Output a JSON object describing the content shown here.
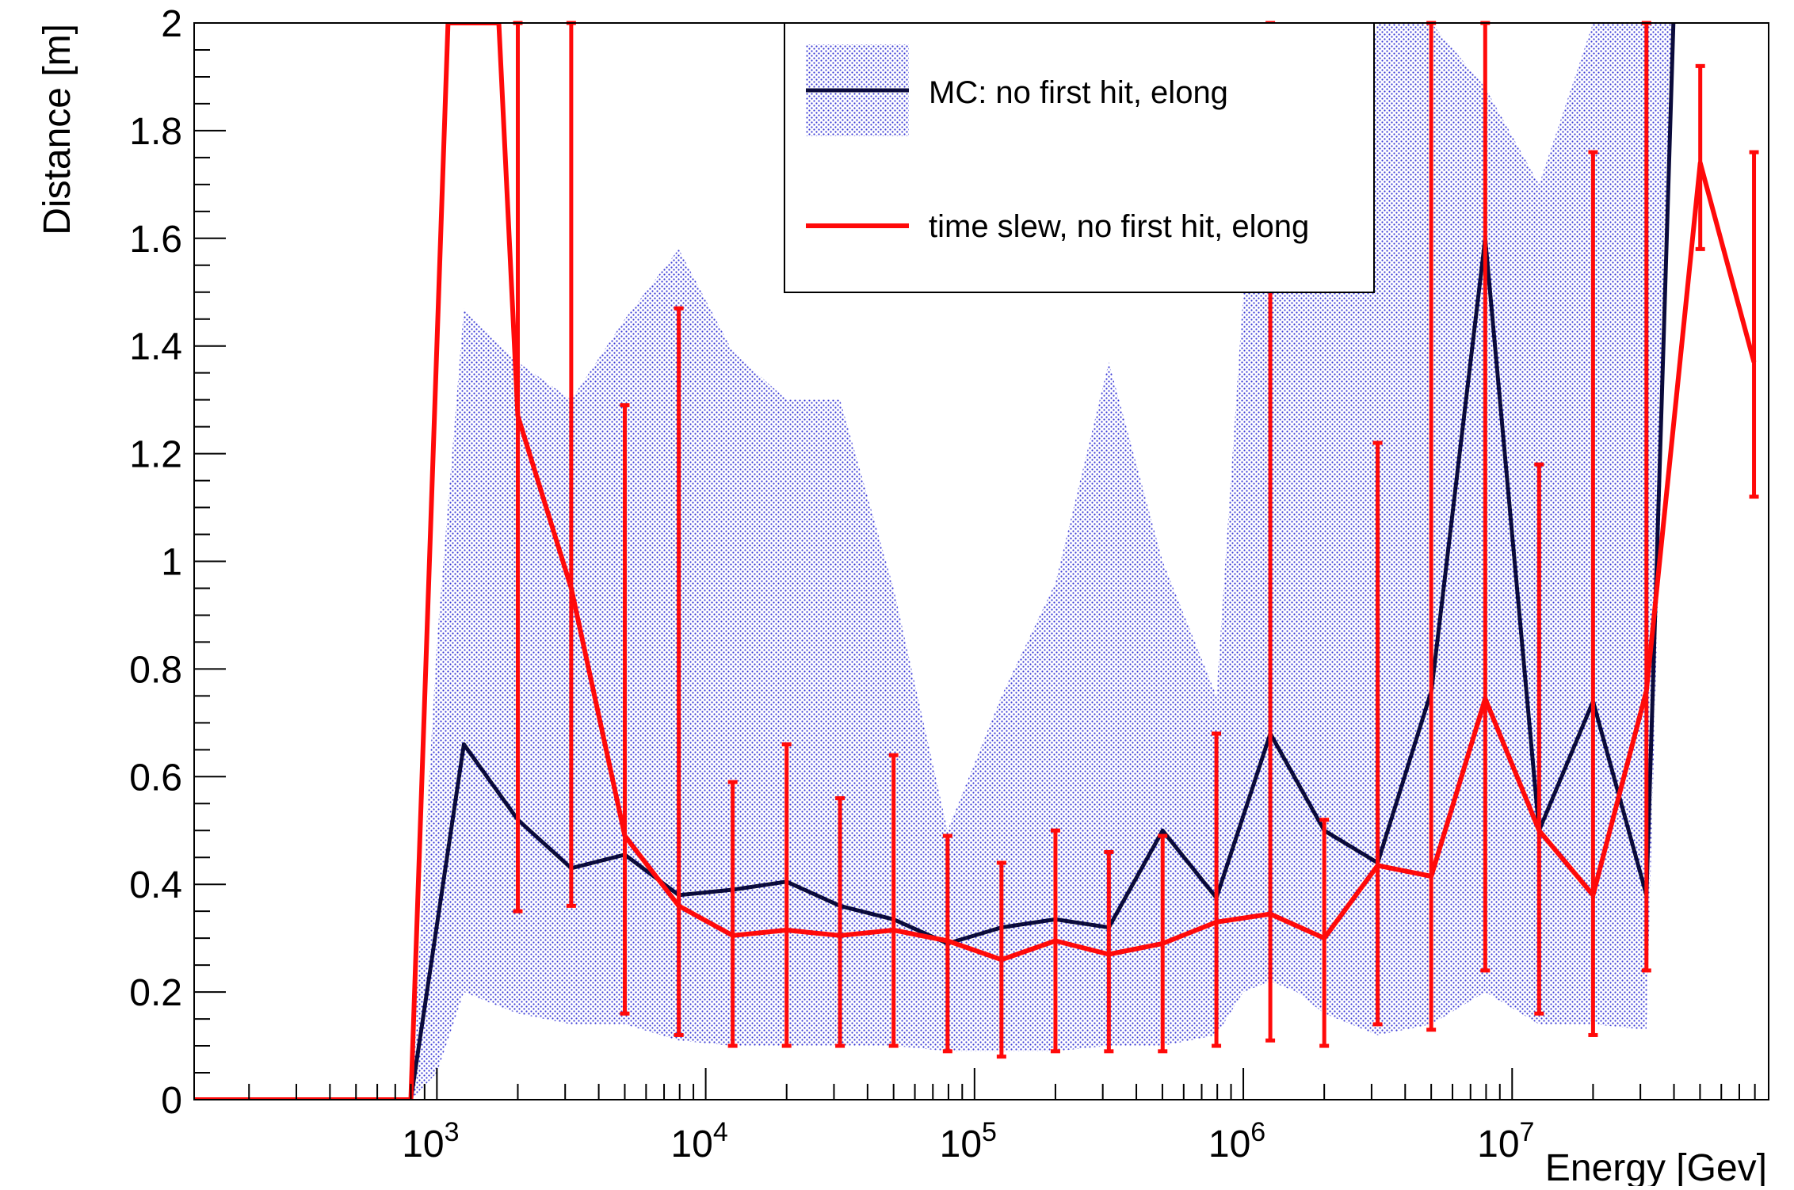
{
  "chart_data": {
    "type": "line",
    "xlabel": "Energy [Gev]",
    "ylabel": "Distance [m]",
    "xscale": "log",
    "xlim": [
      125,
      90000000
    ],
    "ylim": [
      0,
      2
    ],
    "grid": false,
    "legend_position": "top-right",
    "x_tick_labels": [
      {
        "base": "10",
        "exp": "3",
        "value": 1000
      },
      {
        "base": "10",
        "exp": "4",
        "value": 10000
      },
      {
        "base": "10",
        "exp": "5",
        "value": 100000
      },
      {
        "base": "10",
        "exp": "6",
        "value": 1000000
      },
      {
        "base": "10",
        "exp": "7",
        "value": 10000000
      }
    ],
    "y_tick_labels": [
      "0",
      "0.2",
      "0.4",
      "0.6",
      "0.8",
      "1",
      "1.2",
      "1.4",
      "1.6",
      "1.8",
      "2"
    ],
    "band": {
      "legend": "",
      "color": "#3a3ad6",
      "x": [
        800,
        1000,
        1260,
        1580,
        2000,
        3160,
        5000,
        7940,
        12600,
        20000,
        31600,
        50000,
        79400,
        126000,
        200000,
        316000,
        501000,
        794000,
        1000000,
        1260000,
        1580000,
        2000000,
        3160000,
        5000000,
        7940000,
        12600000,
        20000000,
        31600000,
        39800000,
        50100000,
        63000000,
        79400000,
        84000000
      ],
      "lower": [
        0,
        0.05,
        0.2,
        0.18,
        0.16,
        0.14,
        0.14,
        0.11,
        0.1,
        0.1,
        0.1,
        0.1,
        0.09,
        0.09,
        0.09,
        0.1,
        0.1,
        0.12,
        0.2,
        0.22,
        0.2,
        0.16,
        0.12,
        0.14,
        0.2,
        0.14,
        0.14,
        0.13,
        2.0,
        2.0,
        2.0,
        2.0,
        0.25
      ],
      "upper": [
        0,
        0.85,
        1.47,
        1.42,
        1.37,
        1.3,
        1.45,
        1.58,
        1.39,
        1.3,
        1.3,
        0.95,
        0.5,
        0.75,
        0.96,
        1.37,
        1.0,
        0.75,
        1.5,
        2.0,
        2.0,
        1.6,
        2.0,
        2.0,
        1.88,
        1.7,
        2.0,
        2.0,
        2.0,
        2.0,
        2.0,
        2.0,
        0.25
      ]
    },
    "series": [
      {
        "name": "MC: no first hit, elong",
        "color": "#0b0b3b",
        "x": [
          125,
          800,
          1260,
          2000,
          3160,
          5000,
          7940,
          12600,
          20000,
          31600,
          50000,
          79400,
          126000,
          200000,
          316000,
          501000,
          794000,
          1260000,
          2000000,
          3160000,
          5010000,
          7940000,
          12600000,
          20000000,
          31600000,
          39800000
        ],
        "values": [
          0,
          0,
          0.66,
          0.52,
          0.43,
          0.455,
          0.38,
          0.39,
          0.405,
          0.36,
          0.335,
          0.29,
          0.32,
          0.335,
          0.32,
          0.5,
          0.375,
          0.68,
          0.5,
          0.44,
          0.76,
          1.6,
          0.5,
          0.74,
          0.38,
          2.0
        ]
      },
      {
        "name": "time slew, no first hit, elong",
        "color": "#ff0a0a",
        "x": [
          125,
          800,
          1100,
          1700,
          2000,
          3160,
          5000,
          7940,
          12600,
          20000,
          31600,
          50000,
          79400,
          126000,
          200000,
          316000,
          501000,
          794000,
          1260000,
          2000000,
          3160000,
          5000000,
          7940000,
          12600000,
          20000000,
          31600000,
          50100000,
          79400000
        ],
        "values": [
          0,
          0,
          2.0,
          2.0,
          1.27,
          0.95,
          0.49,
          0.36,
          0.305,
          0.315,
          0.305,
          0.315,
          0.295,
          0.26,
          0.295,
          0.27,
          0.29,
          0.33,
          0.345,
          0.3,
          0.435,
          0.415,
          0.745,
          0.5,
          0.38,
          0.76,
          1.74,
          1.37
        ],
        "errors": [
          {
            "x": 2000,
            "low": 0.35,
            "high": 2.0
          },
          {
            "x": 3160,
            "low": 0.36,
            "high": 2.0
          },
          {
            "x": 5000,
            "low": 0.16,
            "high": 1.29
          },
          {
            "x": 7940,
            "low": 0.12,
            "high": 1.47
          },
          {
            "x": 12600,
            "low": 0.1,
            "high": 0.59
          },
          {
            "x": 20000,
            "low": 0.1,
            "high": 0.66
          },
          {
            "x": 31600,
            "low": 0.1,
            "high": 0.56
          },
          {
            "x": 50000,
            "low": 0.1,
            "high": 0.64
          },
          {
            "x": 79400,
            "low": 0.09,
            "high": 0.49
          },
          {
            "x": 126000,
            "low": 0.08,
            "high": 0.44
          },
          {
            "x": 200000,
            "low": 0.09,
            "high": 0.5
          },
          {
            "x": 316000,
            "low": 0.09,
            "high": 0.46
          },
          {
            "x": 501000,
            "low": 0.09,
            "high": 0.49
          },
          {
            "x": 794000,
            "low": 0.1,
            "high": 0.68
          },
          {
            "x": 1260000,
            "low": 0.11,
            "high": 2.0
          },
          {
            "x": 2000000,
            "low": 0.1,
            "high": 0.52
          },
          {
            "x": 3160000,
            "low": 0.14,
            "high": 1.22
          },
          {
            "x": 5000000,
            "low": 0.13,
            "high": 2.0
          },
          {
            "x": 7940000,
            "low": 0.24,
            "high": 2.0
          },
          {
            "x": 12600000,
            "low": 0.16,
            "high": 1.18
          },
          {
            "x": 20000000,
            "low": 0.12,
            "high": 1.76
          },
          {
            "x": 31600000,
            "low": 0.24,
            "high": 2.0
          },
          {
            "x": 50100000,
            "low": 1.58,
            "high": 1.92
          },
          {
            "x": 79400000,
            "low": 1.12,
            "high": 1.76
          }
        ]
      }
    ]
  }
}
